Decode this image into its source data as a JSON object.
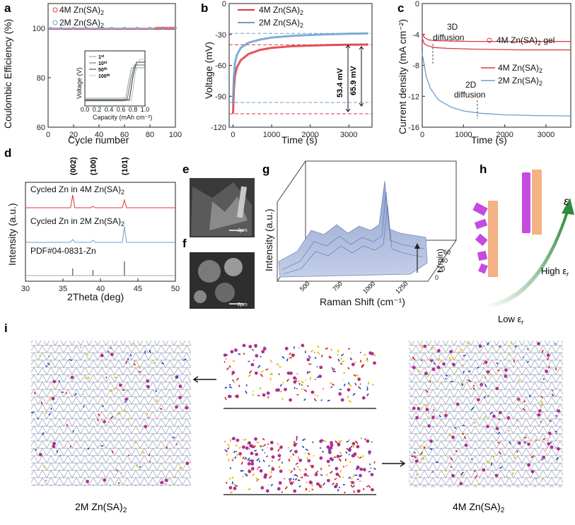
{
  "panels": {
    "a": "a",
    "b": "b",
    "c": "c",
    "d": "d",
    "e": "e",
    "f": "f",
    "g": "g",
    "h": "h",
    "i": "i"
  },
  "colors": {
    "red": "#e0353c",
    "blue": "#6a9fcf",
    "green": "#2f8a3a",
    "orange": "#f4b184",
    "magenta": "#c44be0",
    "grey": "#555555"
  },
  "chart_data": [
    {
      "id": "a",
      "type": "scatter",
      "xlabel": "Cycle number",
      "ylabel": "Coulombic  Efficiency (%)",
      "xlim": [
        0,
        100
      ],
      "ylim": [
        60,
        110
      ],
      "xticks": [
        "0",
        "20",
        "40",
        "60",
        "80",
        "100"
      ],
      "yticks": [
        "60",
        "80",
        "100"
      ],
      "series": [
        {
          "name": "4M Zn(SA)2",
          "label_main": "4M Zn(SA)",
          "label_sub": "2",
          "marker": "open-circle",
          "color": "#e0353c",
          "x": [
            85,
            87,
            89,
            91,
            93,
            95,
            97,
            99
          ],
          "y": [
            100,
            100,
            100,
            100,
            100,
            100,
            100,
            100
          ]
        },
        {
          "name": "2M Zn(SA)2",
          "label_main": "2M Zn(SA)",
          "label_sub": "2",
          "marker": "open-circle",
          "color": "#6a9fcf",
          "x": [
            2,
            10,
            20,
            30,
            40,
            50,
            60,
            70,
            80,
            90,
            100
          ],
          "y": [
            100,
            100,
            100,
            100,
            100,
            100,
            100,
            100,
            100,
            100,
            100
          ]
        }
      ],
      "inset": {
        "xlabel": "Capacity (mAh cm⁻²)",
        "ylabel": "Voltage (V)",
        "xticks": [
          "0.0",
          "0.2",
          "0.4",
          "0.6",
          "0.8",
          "1.0"
        ],
        "legend": [
          {
            "num": "1",
            "sup": "st"
          },
          {
            "num": "10",
            "sup": "st"
          },
          {
            "num": "50",
            "sup": "th"
          },
          {
            "num": "100",
            "sup": "th"
          }
        ]
      }
    },
    {
      "id": "b",
      "type": "line",
      "xlabel": "Time (s)",
      "ylabel": "Voltage (mV)",
      "xlim": [
        -100,
        3600
      ],
      "ylim": [
        -120,
        0
      ],
      "xticks": [
        "0",
        "1000",
        "2000",
        "3000"
      ],
      "yticks": [
        "0",
        "-30",
        "-60",
        "-90",
        "-120"
      ],
      "series": [
        {
          "name": "4M Zn(SA)2",
          "label_main": "4M Zn(SA)",
          "label_sub": "2",
          "color": "#e0353c",
          "x": [
            0,
            20,
            50,
            100,
            200,
            400,
            700,
            1000,
            1500,
            2000,
            2500,
            3000,
            3500
          ],
          "y": [
            -107,
            -85,
            -70,
            -62,
            -55,
            -49,
            -45,
            -43,
            -41.5,
            -40.8,
            -40.3,
            -40,
            -39.8
          ]
        },
        {
          "name": "2M Zn(SA)2",
          "label_main": "2M Zn(SA)",
          "label_sub": "2",
          "color": "#6a9fcf",
          "x": [
            0,
            20,
            50,
            100,
            200,
            400,
            700,
            1000,
            1500,
            2000,
            2500,
            3000,
            3500
          ],
          "y": [
            -96,
            -72,
            -58,
            -50,
            -43,
            -38,
            -35,
            -33,
            -31.5,
            -30.5,
            -29.8,
            -29.3,
            -29
          ]
        }
      ],
      "annotations": [
        "53.4 mV",
        "65.9 mV"
      ],
      "reference_lines_y": [
        -29,
        -40,
        -96,
        -107
      ]
    },
    {
      "id": "c",
      "type": "line",
      "xlabel": "Time (s)",
      "ylabel": "Current density (mA cm⁻²)",
      "xlim": [
        0,
        3600
      ],
      "ylim": [
        -16,
        0
      ],
      "xticks": [
        "0",
        "1000",
        "2000",
        "3000"
      ],
      "yticks": [
        "0",
        "-4",
        "-8",
        "-12",
        "-16"
      ],
      "series": [
        {
          "name": "4M Zn(SA)2 gel",
          "label_main": "4M Zn(SA)",
          "label_sub": "2",
          "label_tail": " gel",
          "color": "#e0353c",
          "x": [
            0,
            50,
            150,
            300,
            600,
            1200,
            2400,
            3600
          ],
          "y": [
            -3.8,
            -4.4,
            -4.7,
            -4.8,
            -4.85,
            -4.9,
            -4.9,
            -4.9
          ]
        },
        {
          "name": "4M Zn(SA)2",
          "label_main": "4M Zn(SA)",
          "label_sub": "2",
          "color": "#e0353c",
          "x": [
            0,
            50,
            150,
            300,
            600,
            1200,
            2400,
            3600
          ],
          "y": [
            -4.5,
            -5.2,
            -5.5,
            -5.7,
            -5.8,
            -5.9,
            -6.0,
            -6.0
          ]
        },
        {
          "name": "2M Zn(SA)2",
          "label_main": "2M Zn(SA)",
          "label_sub": "2",
          "color": "#6a9fcf",
          "x": [
            0,
            100,
            200,
            400,
            700,
            1000,
            1400,
            2000,
            2800,
            3600
          ],
          "y": [
            -6.5,
            -9.5,
            -11,
            -12.5,
            -13.4,
            -13.9,
            -14.2,
            -14.4,
            -14.5,
            -14.55
          ]
        }
      ],
      "annotations": [
        "3D",
        "diffusion",
        "2D",
        "diffusion"
      ]
    },
    {
      "id": "d",
      "type": "line",
      "xlabel": "2Theta (deg)",
      "ylabel": "Intensity (a.u.)",
      "xlim": [
        30,
        50
      ],
      "xticks": [
        "30",
        "35",
        "40",
        "45",
        "50"
      ],
      "peaks": [
        "(002)",
        "(100)",
        "(101)"
      ],
      "series": [
        {
          "name": "Cycled Zn in 4M Zn(SA)2",
          "label_main": "Cycled Zn in 4M Zn(SA)",
          "label_sub": "2",
          "color": "#e0353c"
        },
        {
          "name": "Cycled Zn in 2M Zn(SA)2",
          "label_main": "Cycled Zn in 2M Zn(SA)",
          "label_sub": "2",
          "color": "#6a9fcf"
        },
        {
          "name": "PDF#04-0831-Zn",
          "label_main": "PDF#04-0831-Zn",
          "label_sub": "",
          "color": "#555555",
          "x": [
            36.3,
            39.0,
            43.2
          ],
          "y": [
            0.5,
            0.4,
            1.0
          ]
        }
      ]
    },
    {
      "id": "g",
      "type": "area",
      "xlabel": "Raman Shift (cm⁻¹)",
      "ylabel": "Intensity (a.u.)",
      "zlabel": "t (min)",
      "xticks": [
        "500",
        "750",
        "1000",
        "1250"
      ],
      "zticks": [
        "0",
        "20",
        "40",
        "60"
      ]
    }
  ],
  "sem": {
    "e_scale": "2μm",
    "f_scale": "2μm"
  },
  "h": {
    "epsilon": "ε",
    "high": "High ε",
    "low": "Low ε",
    "sub": "r"
  },
  "i": {
    "left_label": "2M Zn(SA)",
    "right_label": "4M Zn(SA)",
    "sub": "2"
  }
}
